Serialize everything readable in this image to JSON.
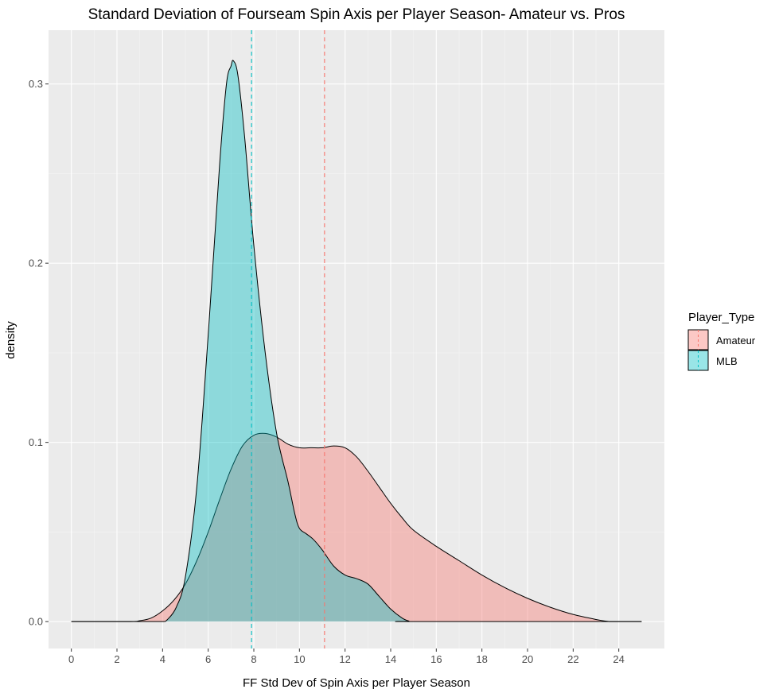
{
  "chart_data": {
    "type": "area",
    "title": "Standard Deviation of Fourseam Spin Axis per Player Season- Amateur vs. Pros",
    "xlabel": "FF Std Dev of Spin Axis per Player Season",
    "ylabel": "density",
    "xlim": [
      -1,
      26
    ],
    "ylim": [
      -0.015,
      0.33
    ],
    "x_ticks": [
      0,
      2,
      4,
      6,
      8,
      10,
      12,
      14,
      16,
      18,
      20,
      22,
      24
    ],
    "y_ticks": [
      0.0,
      0.1,
      0.2,
      0.3
    ],
    "y_tick_labels": [
      "0.0",
      "0.1",
      "0.2",
      "0.3"
    ],
    "grid": true,
    "legend": {
      "title": "Player_Type",
      "position": "right",
      "entries": [
        "Amateur",
        "MLB"
      ]
    },
    "series": [
      {
        "name": "Amateur",
        "fill": "#F8766D",
        "mean_line": 11.1,
        "x": [
          0,
          2.5,
          3,
          3.5,
          4,
          4.5,
          5,
          5.5,
          6,
          6.5,
          7,
          7.5,
          8,
          8.5,
          9,
          9.5,
          10,
          10.5,
          11,
          11.5,
          12,
          12.5,
          13,
          13.5,
          14,
          14.5,
          15,
          16,
          17,
          18,
          19,
          20,
          21,
          22,
          23,
          23.6,
          24,
          25
        ],
        "y": [
          0,
          0,
          0.0005,
          0.002,
          0.006,
          0.012,
          0.021,
          0.034,
          0.05,
          0.068,
          0.085,
          0.098,
          0.104,
          0.105,
          0.103,
          0.099,
          0.097,
          0.097,
          0.097,
          0.098,
          0.097,
          0.092,
          0.084,
          0.075,
          0.066,
          0.058,
          0.051,
          0.042,
          0.034,
          0.026,
          0.019,
          0.013,
          0.008,
          0.004,
          0.0012,
          0,
          0,
          0
        ]
      },
      {
        "name": "MLB",
        "fill": "#00BFC4",
        "mean_line": 7.9,
        "x": [
          0,
          3,
          4,
          4.2,
          4.6,
          5,
          5.5,
          6,
          6.5,
          6.8,
          7,
          7.1,
          7.3,
          7.6,
          8,
          8.5,
          9,
          9.5,
          9.8,
          10,
          10.3,
          10.6,
          11,
          11.5,
          12,
          12.5,
          13,
          13.5,
          14,
          14.5,
          14.8,
          15,
          25
        ],
        "y": [
          0,
          0,
          0,
          0.001,
          0.008,
          0.025,
          0.075,
          0.16,
          0.255,
          0.3,
          0.31,
          0.313,
          0.305,
          0.27,
          0.21,
          0.15,
          0.105,
          0.078,
          0.06,
          0.052,
          0.049,
          0.046,
          0.04,
          0.031,
          0.026,
          0.024,
          0.021,
          0.014,
          0.007,
          0.002,
          0.0003,
          0,
          0
        ]
      }
    ]
  }
}
